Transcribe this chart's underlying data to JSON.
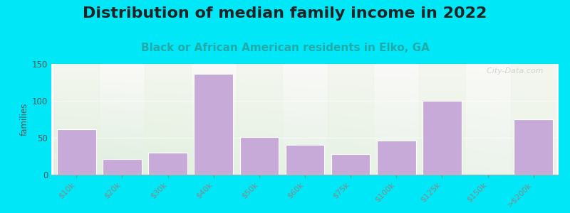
{
  "title": "Distribution of median family income in 2022",
  "subtitle": "Black or African American residents in Elko, GA",
  "categories": [
    "$10k",
    "$20k",
    "$30k",
    "$40k",
    "$50k",
    "$60k",
    "$75k",
    "$100k",
    "$125k",
    "$150k",
    ">$200k"
  ],
  "values": [
    62,
    21,
    30,
    137,
    51,
    40,
    28,
    46,
    100,
    0,
    75
  ],
  "bar_color": "#c8aad8",
  "bar_edgecolor": "#c8aad8",
  "ylabel": "families",
  "ylim": [
    0,
    150
  ],
  "yticks": [
    0,
    50,
    100,
    150
  ],
  "background_outer": "#00e8f8",
  "background_top": "#f8f8f8",
  "background_bottom_green": "#ddeedd",
  "background_bottom_white": "#f0f5f0",
  "title_fontsize": 16,
  "subtitle_fontsize": 11,
  "subtitle_color": "#22aaaa",
  "watermark": "  City-Data.com",
  "band_colors_even": "#e8f2e0",
  "band_colors_odd": "#f4f8f2"
}
